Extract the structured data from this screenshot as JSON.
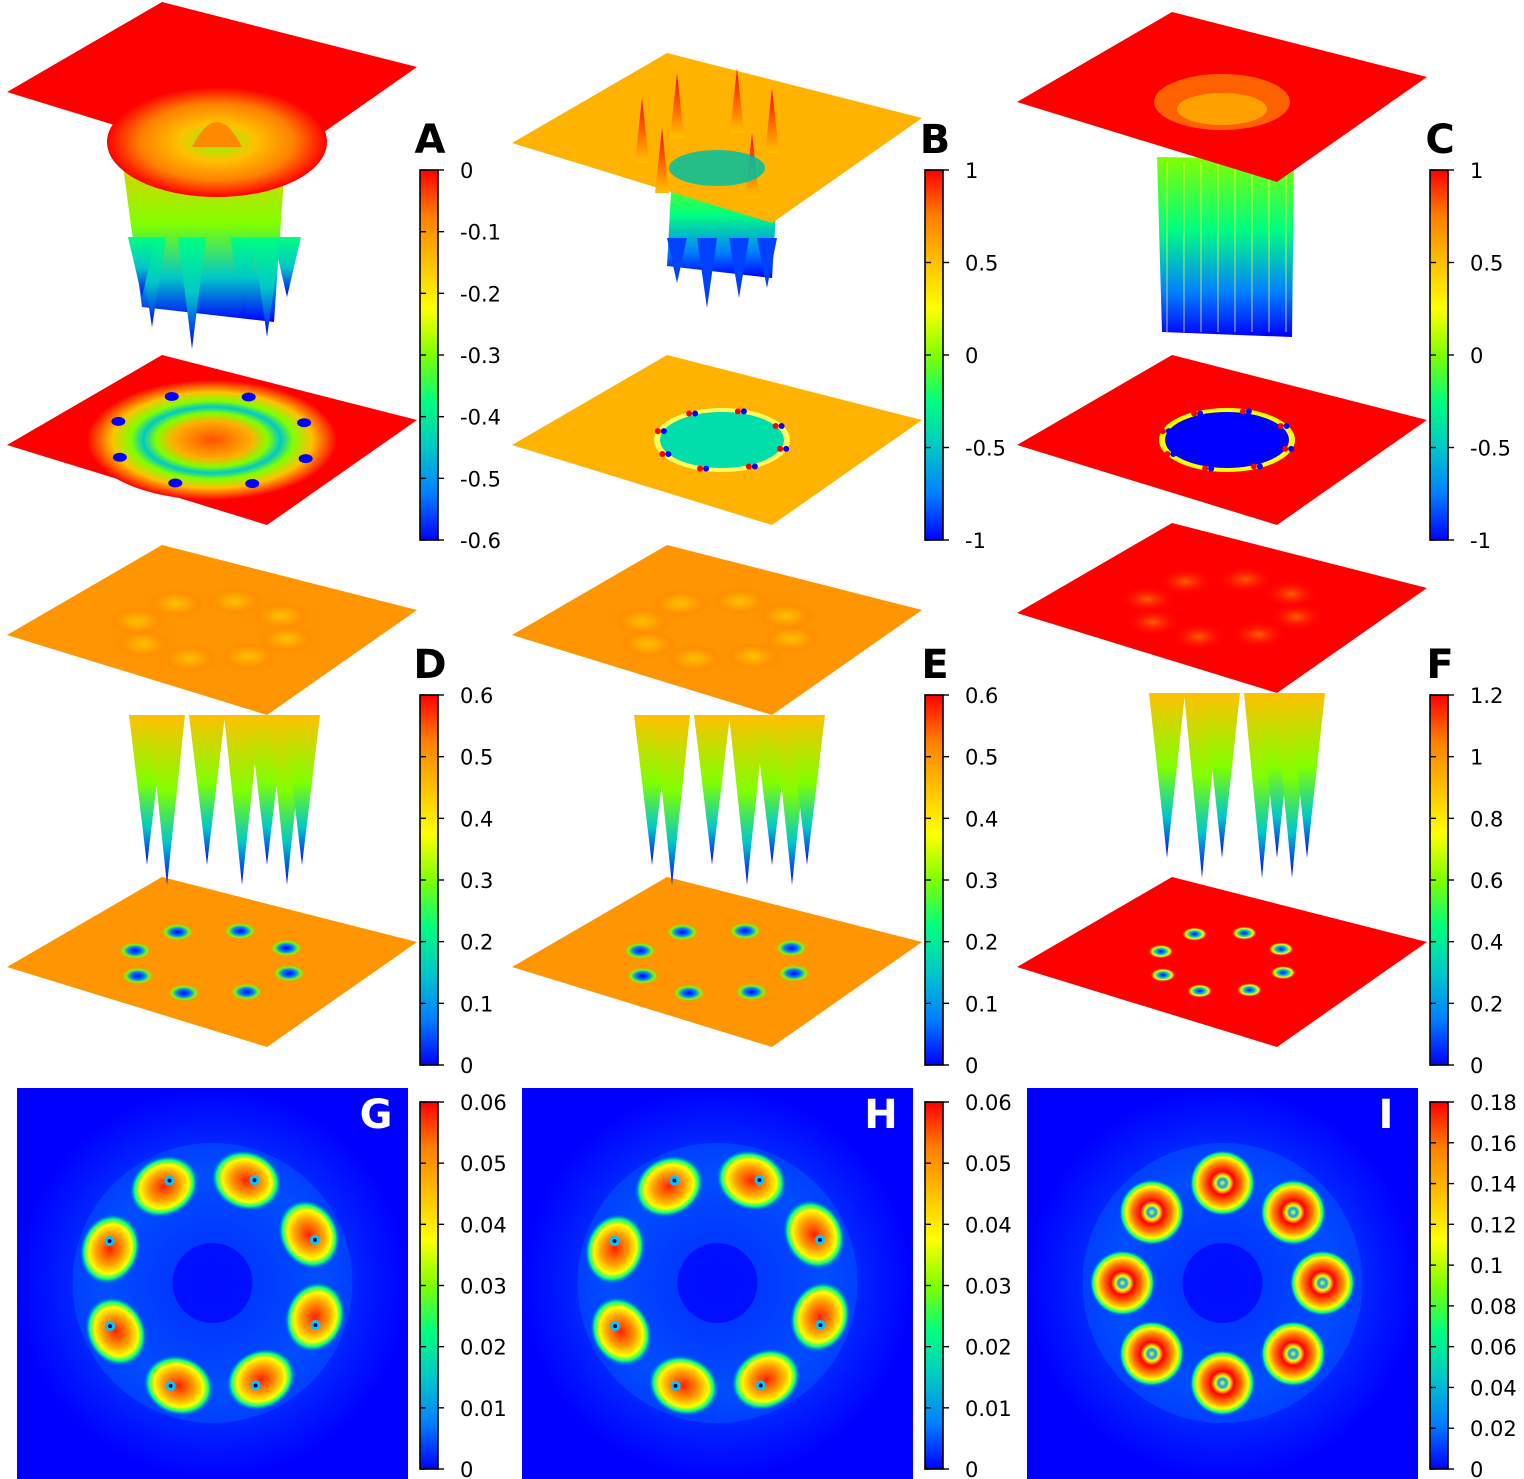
{
  "colormap": [
    "#0000ff",
    "#0080ff",
    "#00c8c8",
    "#00ff80",
    "#80ff00",
    "#ffff00",
    "#ffc000",
    "#ff8000",
    "#ff0000"
  ],
  "chart_data": [
    {
      "panel": "A",
      "type": "heatmap",
      "view": "3d-surface-with-projection",
      "colorbar": {
        "range": [
          -0.6,
          0
        ],
        "ticks": [
          "0",
          "-0.1",
          "-0.2",
          "-0.3",
          "-0.4",
          "-0.5",
          "-0.6"
        ]
      },
      "background_level": 0,
      "ring": {
        "count": 8,
        "core_level": -0.6,
        "ring_level": -0.35,
        "center_level": -0.1
      }
    },
    {
      "panel": "B",
      "type": "heatmap",
      "view": "3d-surface-with-projection",
      "colorbar": {
        "range": [
          -1,
          1
        ],
        "ticks": [
          "1",
          "0.5",
          "0",
          "-0.5",
          "-1"
        ]
      },
      "background_level": 0.55,
      "ring": {
        "count": 8,
        "inner_disc_level": -0.4,
        "edge_levels": [
          1,
          -1
        ]
      }
    },
    {
      "panel": "C",
      "type": "heatmap",
      "view": "3d-surface-with-projection",
      "colorbar": {
        "range": [
          -1,
          1
        ],
        "ticks": [
          "1",
          "0.5",
          "0",
          "-0.5",
          "-1"
        ]
      },
      "background_level": 1,
      "ring": {
        "count": 8,
        "inner_disc_level": -1,
        "edge_levels": [
          0.4,
          -0.4
        ]
      }
    },
    {
      "panel": "D",
      "type": "heatmap",
      "view": "3d-surface-with-projection",
      "colorbar": {
        "range": [
          0,
          0.6
        ],
        "ticks": [
          "0.6",
          "0.5",
          "0.4",
          "0.3",
          "0.2",
          "0.1",
          "0"
        ]
      },
      "background_level": 0.5,
      "ring": {
        "count": 8,
        "core_level": 0
      }
    },
    {
      "panel": "E",
      "type": "heatmap",
      "view": "3d-surface-with-projection",
      "colorbar": {
        "range": [
          0,
          0.6
        ],
        "ticks": [
          "0.6",
          "0.5",
          "0.4",
          "0.3",
          "0.2",
          "0.1",
          "0"
        ]
      },
      "background_level": 0.5,
      "ring": {
        "count": 8,
        "core_level": 0
      }
    },
    {
      "panel": "F",
      "type": "heatmap",
      "view": "3d-surface-with-projection",
      "colorbar": {
        "range": [
          0,
          1.2
        ],
        "ticks": [
          "1.2",
          "1",
          "0.8",
          "0.6",
          "0.4",
          "0.2",
          "0"
        ]
      },
      "background_level": 1.2,
      "ring": {
        "count": 8,
        "core_level": 0
      }
    },
    {
      "panel": "G",
      "type": "heatmap",
      "view": "2d-map",
      "colorbar": {
        "range": [
          0,
          0.06
        ],
        "ticks": [
          "0.06",
          "0.05",
          "0.04",
          "0.03",
          "0.02",
          "0.01",
          "0"
        ]
      },
      "background_level": 0,
      "ring": {
        "count": 8,
        "peak_level": 0.06
      }
    },
    {
      "panel": "H",
      "type": "heatmap",
      "view": "2d-map",
      "colorbar": {
        "range": [
          0,
          0.06
        ],
        "ticks": [
          "0.06",
          "0.05",
          "0.04",
          "0.03",
          "0.02",
          "0.01",
          "0"
        ]
      },
      "background_level": 0,
      "ring": {
        "count": 8,
        "peak_level": 0.06
      }
    },
    {
      "panel": "I",
      "type": "heatmap",
      "view": "2d-map",
      "colorbar": {
        "range": [
          0,
          0.18
        ],
        "ticks": [
          "0.18",
          "0.16",
          "0.14",
          "0.12",
          "0.1",
          "0.08",
          "0.06",
          "0.04",
          "0.02",
          "0"
        ]
      },
      "background_level": 0,
      "ring": {
        "count": 8,
        "peak_level": 0.18
      }
    }
  ]
}
